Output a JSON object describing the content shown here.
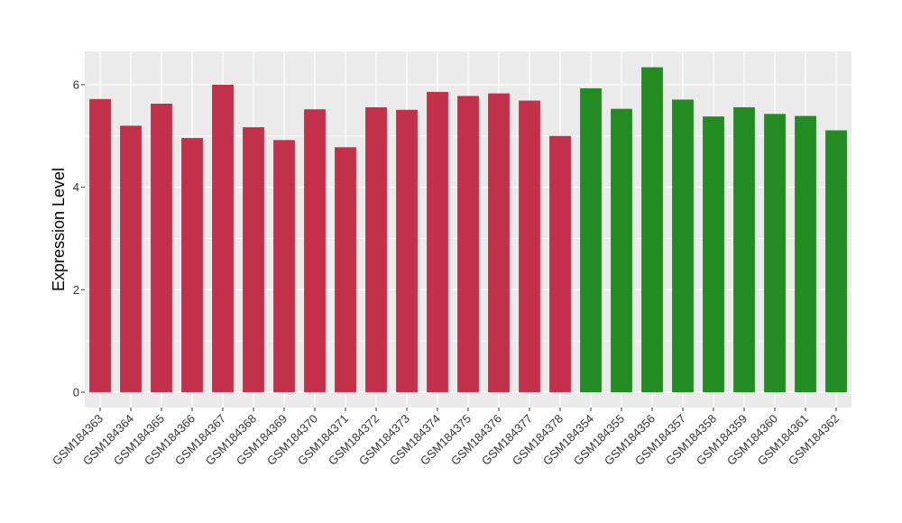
{
  "chart_data": {
    "type": "bar",
    "ylabel": "Expression Level",
    "xlabel": "",
    "ylim": [
      -0.3,
      6.65
    ],
    "yticks": [
      0,
      2,
      4,
      6
    ],
    "grid": true,
    "categories": [
      "GSM184363",
      "GSM184364",
      "GSM184365",
      "GSM184366",
      "GSM184367",
      "GSM184368",
      "GSM184369",
      "GSM184370",
      "GSM184371",
      "GSM184372",
      "GSM184373",
      "GSM184374",
      "GSM184375",
      "GSM184376",
      "GSM184377",
      "GSM184378",
      "GSM184354",
      "GSM184355",
      "GSM184356",
      "GSM184357",
      "GSM184358",
      "GSM184359",
      "GSM184360",
      "GSM184361",
      "GSM184362"
    ],
    "values": [
      5.72,
      5.2,
      5.63,
      4.96,
      6.0,
      5.17,
      4.92,
      5.52,
      4.78,
      5.56,
      5.51,
      5.86,
      5.78,
      5.83,
      5.69,
      5.0,
      5.93,
      5.53,
      6.34,
      5.71,
      5.38,
      5.56,
      5.43,
      5.39,
      5.11
    ],
    "bar_colors": [
      "#C2304A",
      "#C2304A",
      "#C2304A",
      "#C2304A",
      "#C2304A",
      "#C2304A",
      "#C2304A",
      "#C2304A",
      "#C2304A",
      "#C2304A",
      "#C2304A",
      "#C2304A",
      "#C2304A",
      "#C2304A",
      "#C2304A",
      "#C2304A",
      "#228B22",
      "#228B22",
      "#228B22",
      "#228B22",
      "#228B22",
      "#228B22",
      "#228B22",
      "#228B22",
      "#228B22"
    ],
    "panel_background": "#EBEBEB",
    "grid_color": "#FFFFFF"
  }
}
